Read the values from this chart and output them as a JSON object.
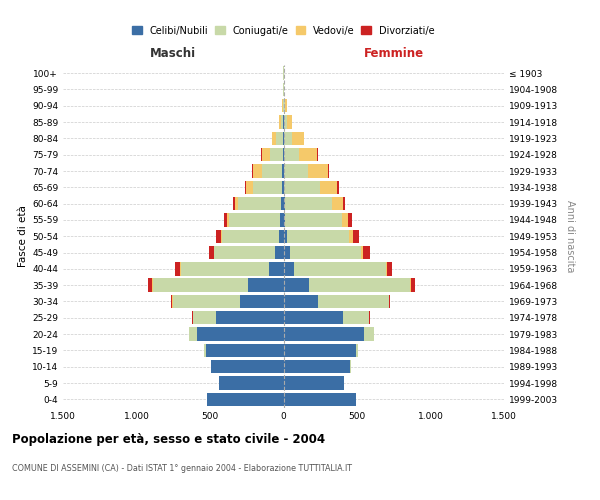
{
  "age_groups": [
    "0-4",
    "5-9",
    "10-14",
    "15-19",
    "20-24",
    "25-29",
    "30-34",
    "35-39",
    "40-44",
    "45-49",
    "50-54",
    "55-59",
    "60-64",
    "65-69",
    "70-74",
    "75-79",
    "80-84",
    "85-89",
    "90-94",
    "95-99",
    "100+"
  ],
  "birth_years": [
    "1999-2003",
    "1994-1998",
    "1989-1993",
    "1984-1988",
    "1979-1983",
    "1974-1978",
    "1969-1973",
    "1964-1968",
    "1959-1963",
    "1954-1958",
    "1949-1953",
    "1944-1948",
    "1939-1943",
    "1934-1938",
    "1929-1933",
    "1924-1928",
    "1919-1923",
    "1914-1918",
    "1909-1913",
    "1904-1908",
    "≤ 1903"
  ],
  "males_celibe": [
    520,
    440,
    490,
    530,
    590,
    460,
    295,
    240,
    100,
    60,
    30,
    22,
    18,
    10,
    8,
    4,
    2,
    2,
    0,
    0,
    0
  ],
  "males_coniugato": [
    1,
    1,
    4,
    12,
    50,
    155,
    460,
    650,
    600,
    410,
    390,
    350,
    290,
    200,
    140,
    90,
    50,
    18,
    6,
    2,
    1
  ],
  "males_vedovo": [
    0,
    0,
    0,
    0,
    0,
    1,
    1,
    2,
    3,
    5,
    8,
    12,
    22,
    45,
    60,
    55,
    28,
    10,
    2,
    0,
    0
  ],
  "males_divorziato": [
    0,
    0,
    0,
    0,
    1,
    4,
    10,
    32,
    32,
    32,
    32,
    22,
    12,
    6,
    3,
    2,
    1,
    0,
    0,
    0,
    0
  ],
  "females_celibe": [
    490,
    410,
    450,
    490,
    545,
    405,
    235,
    175,
    72,
    42,
    22,
    12,
    8,
    5,
    3,
    0,
    0,
    0,
    0,
    0,
    0
  ],
  "females_coniugato": [
    1,
    2,
    7,
    18,
    68,
    178,
    480,
    685,
    625,
    485,
    425,
    385,
    325,
    245,
    165,
    105,
    55,
    22,
    8,
    2,
    0
  ],
  "females_vedovo": [
    0,
    0,
    0,
    0,
    0,
    1,
    2,
    5,
    8,
    16,
    26,
    42,
    72,
    115,
    135,
    125,
    85,
    38,
    14,
    4,
    1
  ],
  "females_divorziato": [
    0,
    0,
    0,
    0,
    1,
    4,
    10,
    30,
    36,
    46,
    42,
    26,
    16,
    10,
    5,
    3,
    2,
    1,
    0,
    0,
    0
  ],
  "colors_celibe": "#3B6EA5",
  "colors_coniugato": "#C8D9A8",
  "colors_vedovo": "#F5C96A",
  "colors_divorziato": "#CC2222",
  "legend_labels": [
    "Celibi/Nubili",
    "Coniugati/e",
    "Vedovi/e",
    "Divorziati/e"
  ],
  "xlabel_maschi": "Maschi",
  "xlabel_femmine": "Femmine",
  "ylabel_left": "Fasce di età",
  "ylabel_right": "Anni di nascita",
  "title": "Popolazione per età, sesso e stato civile - 2004",
  "subtitle": "COMUNE DI ASSEMINI (CA) - Dati ISTAT 1° gennaio 2004 - Elaborazione TUTTITALIA.IT",
  "xlim": 1500,
  "xtick_vals": [
    -1500,
    -1000,
    -500,
    0,
    500,
    1000,
    1500
  ],
  "xtick_labels": [
    "1.500",
    "1.000",
    "500",
    "0",
    "500",
    "1.000",
    "1.500"
  ]
}
